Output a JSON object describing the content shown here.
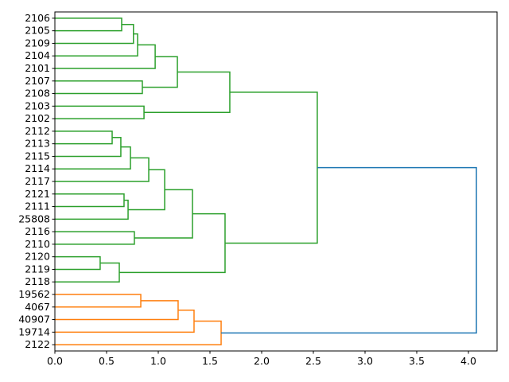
{
  "chart_data": {
    "type": "dendrogram",
    "orientation": "left",
    "title": "",
    "xlabel": "",
    "ylabel": "",
    "xlim": [
      0,
      4.277
    ],
    "xticks": [
      "0.0",
      "0.5",
      "1.0",
      "1.5",
      "2.0",
      "2.5",
      "3.0",
      "3.5",
      "4.0"
    ],
    "xtick_values": [
      0,
      0.5,
      1.0,
      1.5,
      2.0,
      2.5,
      3.0,
      3.5,
      4.0
    ],
    "leaves": [
      "2106",
      "2105",
      "2109",
      "2104",
      "2101",
      "2107",
      "2108",
      "2103",
      "2102",
      "2112",
      "2113",
      "2115",
      "2114",
      "2117",
      "2121",
      "2111",
      "25808",
      "2116",
      "2110",
      "2120",
      "2119",
      "2118",
      "19562",
      "4067",
      "40907",
      "19714",
      "2122"
    ],
    "colors": {
      "green": "#2ca02c",
      "orange": "#ff7f0e",
      "blue": "#1f77b4"
    },
    "merges": [
      [
        0,
        1,
        0.646,
        "green"
      ],
      [
        27,
        2,
        0.76,
        "green"
      ],
      [
        28,
        3,
        0.8,
        "green"
      ],
      [
        29,
        4,
        0.97,
        "green"
      ],
      [
        5,
        6,
        0.846,
        "green"
      ],
      [
        30,
        31,
        1.185,
        "green"
      ],
      [
        7,
        8,
        0.862,
        "green"
      ],
      [
        32,
        33,
        1.692,
        "green"
      ],
      [
        9,
        10,
        0.554,
        "green"
      ],
      [
        35,
        11,
        0.638,
        "green"
      ],
      [
        36,
        12,
        0.731,
        "green"
      ],
      [
        37,
        13,
        0.908,
        "green"
      ],
      [
        14,
        15,
        0.669,
        "green"
      ],
      [
        39,
        16,
        0.708,
        "green"
      ],
      [
        38,
        40,
        1.062,
        "green"
      ],
      [
        17,
        18,
        0.769,
        "green"
      ],
      [
        41,
        42,
        1.331,
        "green"
      ],
      [
        19,
        20,
        0.438,
        "green"
      ],
      [
        44,
        21,
        0.623,
        "green"
      ],
      [
        43,
        45,
        1.646,
        "green"
      ],
      [
        34,
        46,
        2.538,
        "green"
      ],
      [
        22,
        23,
        0.831,
        "orange"
      ],
      [
        48,
        24,
        1.192,
        "orange"
      ],
      [
        49,
        25,
        1.346,
        "orange"
      ],
      [
        50,
        26,
        1.608,
        "orange"
      ],
      [
        47,
        51,
        4.077,
        "blue"
      ]
    ]
  }
}
